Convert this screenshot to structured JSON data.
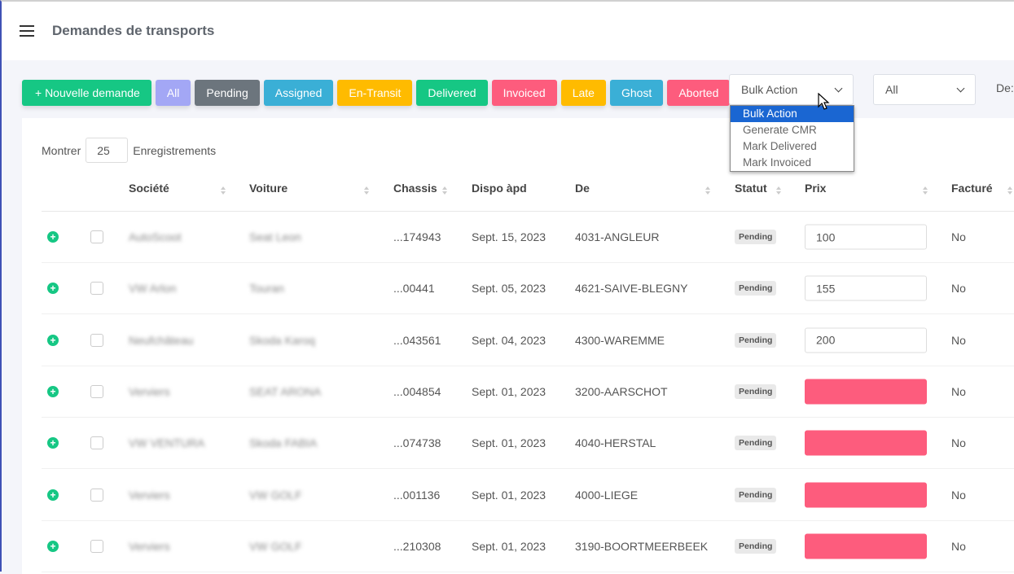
{
  "header": {
    "title": "Demandes de transports",
    "menu_icon": "hamburger-icon"
  },
  "toolbar": {
    "buttons": [
      {
        "label": "+ Nouvelle demande",
        "color": "#16c784"
      },
      {
        "label": "All",
        "color": "#a3a7f5"
      },
      {
        "label": "Pending",
        "color": "#6c757d"
      },
      {
        "label": "Assigned",
        "color": "#3aafd6"
      },
      {
        "label": "En-Transit",
        "color": "#ffbb00"
      },
      {
        "label": "Delivered",
        "color": "#16c784"
      },
      {
        "label": "Invoiced",
        "color": "#fd5c7d"
      },
      {
        "label": "Late",
        "color": "#ffbb00"
      },
      {
        "label": "Ghost",
        "color": "#3aafd6"
      },
      {
        "label": "Aborted",
        "color": "#fd5c7d"
      }
    ],
    "bulk_action": {
      "value": "Bulk Action",
      "options": [
        "Bulk Action",
        "Generate CMR",
        "Mark Delivered",
        "Mark Invoiced"
      ]
    },
    "filter": {
      "value": "All"
    },
    "de_label": "De:"
  },
  "table": {
    "show_label": "Montrer",
    "page_size": "25",
    "records_label": "Enregistrements",
    "columns": [
      "Société",
      "Voiture",
      "Chassis",
      "Dispo àpd",
      "De",
      "Statut",
      "Prix",
      "Facturé"
    ],
    "rows": [
      {
        "societe": "AutoScoot",
        "voiture": "Seat Leon",
        "chassis": "...174943",
        "dispo": "Sept. 15, 2023",
        "de": "4031-ANGLEUR",
        "statut": "Pending",
        "prix": "100",
        "facture": "No"
      },
      {
        "societe": "VW Arlon",
        "voiture": "Touran",
        "chassis": "...00441",
        "dispo": "Sept. 05, 2023",
        "de": "4621-SAIVE-BLEGNY",
        "statut": "Pending",
        "prix": "155",
        "facture": "No"
      },
      {
        "societe": "Neufchâteau",
        "voiture": "Skoda Karoq",
        "chassis": "...043561",
        "dispo": "Sept. 04, 2023",
        "de": "4300-WAREMME",
        "statut": "Pending",
        "prix": "200",
        "facture": "No"
      },
      {
        "societe": "Verviers",
        "voiture": "SEAT ARONA",
        "chassis": "...004854",
        "dispo": "Sept. 01, 2023",
        "de": "3200-AARSCHOT",
        "statut": "Pending",
        "prix": "",
        "facture": "No"
      },
      {
        "societe": "VW VENTURA",
        "voiture": "Skoda FABIA",
        "chassis": "...074738",
        "dispo": "Sept. 01, 2023",
        "de": "4040-HERSTAL",
        "statut": "Pending",
        "prix": "",
        "facture": "No"
      },
      {
        "societe": "Verviers",
        "voiture": "VW GOLF",
        "chassis": "...001136",
        "dispo": "Sept. 01, 2023",
        "de": "4000-LIEGE",
        "statut": "Pending",
        "prix": "",
        "facture": "No"
      },
      {
        "societe": "Verviers",
        "voiture": "VW GOLF",
        "chassis": "...210308",
        "dispo": "Sept. 01, 2023",
        "de": "3190-BOORTMEERBEEK",
        "statut": "Pending",
        "prix": "",
        "facture": "No"
      }
    ]
  }
}
